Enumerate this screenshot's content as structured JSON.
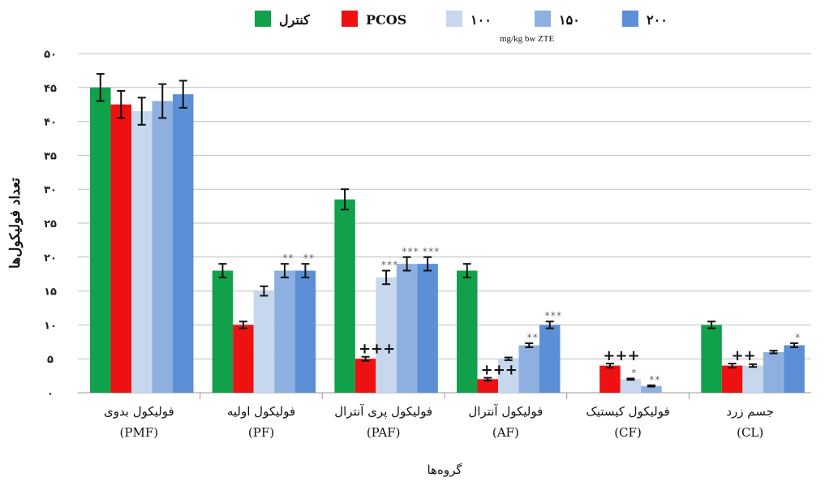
{
  "chart_data": {
    "type": "bar",
    "title": "",
    "xlabel": "گروه‌ها",
    "ylabel": "تعداد فولیکول‌ها",
    "ylim": [
      0,
      50
    ],
    "yticks": [
      0,
      5,
      10,
      15,
      20,
      25,
      30,
      35,
      40,
      45,
      50
    ],
    "ytick_labels": [
      "۰",
      "۵",
      "۱۰",
      "۱۵",
      "۲۰",
      "۲۵",
      "۳۰",
      "۳۵",
      "۴۰",
      "۴۵",
      "۵۰"
    ],
    "grid": true,
    "legend_position": "top",
    "legend_unit": "mg/kg  bw ZTE",
    "categories": [
      [
        "فولیکول بدوی",
        "(PMF)"
      ],
      [
        "فولیکول اولیه",
        "(PF)"
      ],
      [
        "فولیکول پری آنترال",
        "(PAF)"
      ],
      [
        "فولیکول آنترال",
        "(AF)"
      ],
      [
        "فولیکول کیستیک",
        "(CF)"
      ],
      [
        "جسم زرد",
        "(CL)"
      ]
    ],
    "series": [
      {
        "name": "کنترل",
        "color": "#12a14b",
        "values": [
          45,
          18,
          28.5,
          18,
          0,
          10
        ],
        "errors": [
          2,
          1,
          1.5,
          1,
          0,
          0.5
        ]
      },
      {
        "name": "PCOS",
        "color": "#ee1111",
        "values": [
          42.5,
          10,
          5,
          2,
          4,
          4
        ],
        "errors": [
          2,
          0.5,
          0.3,
          0.2,
          0.3,
          0.3
        ]
      },
      {
        "name": "۱۰۰",
        "color": "#c6d7ee",
        "values": [
          41.5,
          15,
          17,
          5,
          2,
          4
        ],
        "errors": [
          2,
          0.7,
          1,
          0.2,
          0.1,
          0.2
        ]
      },
      {
        "name": "۱۵۰",
        "color": "#8eb0e0",
        "values": [
          43,
          18,
          19,
          7,
          1,
          6
        ],
        "errors": [
          2.5,
          1,
          1,
          0.3,
          0.1,
          0.2
        ]
      },
      {
        "name": "۲۰۰",
        "color": "#5b8fd6",
        "values": [
          44,
          18,
          19,
          10,
          0,
          7
        ],
        "errors": [
          2,
          1,
          1,
          0.5,
          0,
          0.3
        ]
      }
    ],
    "annotations": [
      {
        "category": 1,
        "series": 3,
        "text": "**"
      },
      {
        "category": 1,
        "series": 4,
        "text": "**"
      },
      {
        "category": 2,
        "series": 1,
        "text": "+++"
      },
      {
        "category": 2,
        "series": 2,
        "text": "***"
      },
      {
        "category": 2,
        "series": 3,
        "text": "***"
      },
      {
        "category": 2,
        "series": 4,
        "text": "***"
      },
      {
        "category": 3,
        "series": 1,
        "text": "+++"
      },
      {
        "category": 3,
        "series": 3,
        "text": "**"
      },
      {
        "category": 3,
        "series": 4,
        "text": "***"
      },
      {
        "category": 4,
        "series": 1,
        "text": "+++"
      },
      {
        "category": 4,
        "series": 2,
        "text": "*"
      },
      {
        "category": 4,
        "series": 3,
        "text": "**"
      },
      {
        "category": 5,
        "series": 1,
        "text": "++"
      },
      {
        "category": 5,
        "series": 4,
        "text": "*"
      }
    ]
  }
}
